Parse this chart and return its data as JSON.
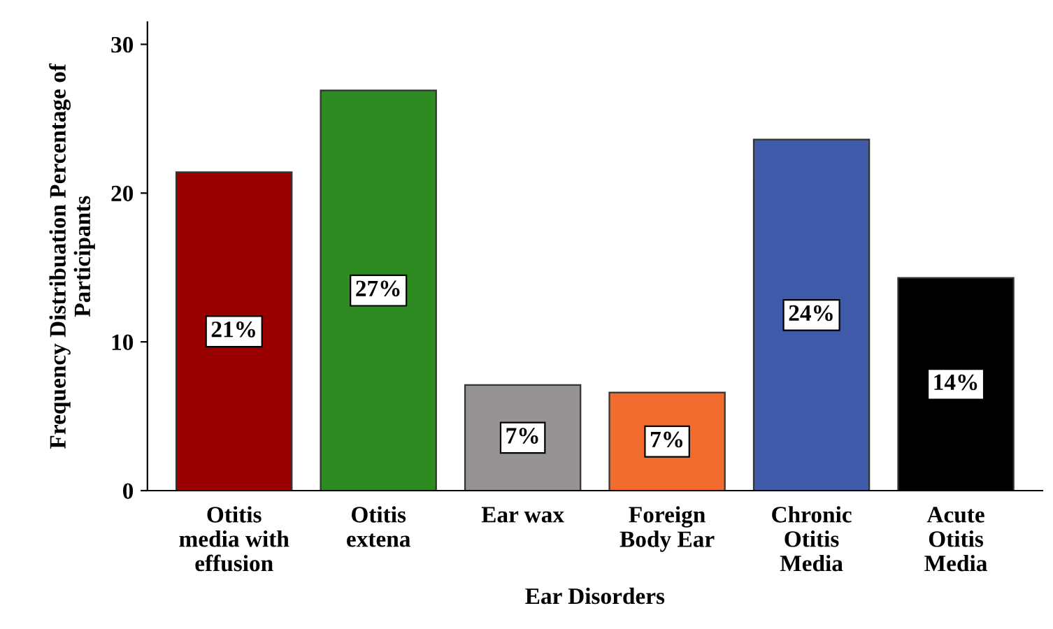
{
  "chart_data": {
    "type": "bar",
    "xlabel": "Ear Disorders",
    "ylabel": "Frequency Distribuation Percentage of\nParticipants",
    "categories": [
      "Otitis\nmedia with\neffusion",
      "Otitis\nextena",
      "Ear wax",
      "Foreign\nBody Ear",
      "Chronic\nOtitis\nMedia",
      "Acute\nOtitis\nMedia"
    ],
    "values": [
      21.4,
      26.9,
      7.1,
      6.6,
      23.6,
      14.3
    ],
    "value_labels": [
      "21%",
      "27%",
      "7%",
      "7%",
      "24%",
      "14%"
    ],
    "colors": [
      "#990000",
      "#2e8b22",
      "#979393",
      "#f26b2f",
      "#3f5aa8",
      "#000000"
    ],
    "ylim": [
      0,
      31.5
    ],
    "yticks": [
      0,
      10,
      20,
      30
    ],
    "grid": false,
    "legend": false
  }
}
